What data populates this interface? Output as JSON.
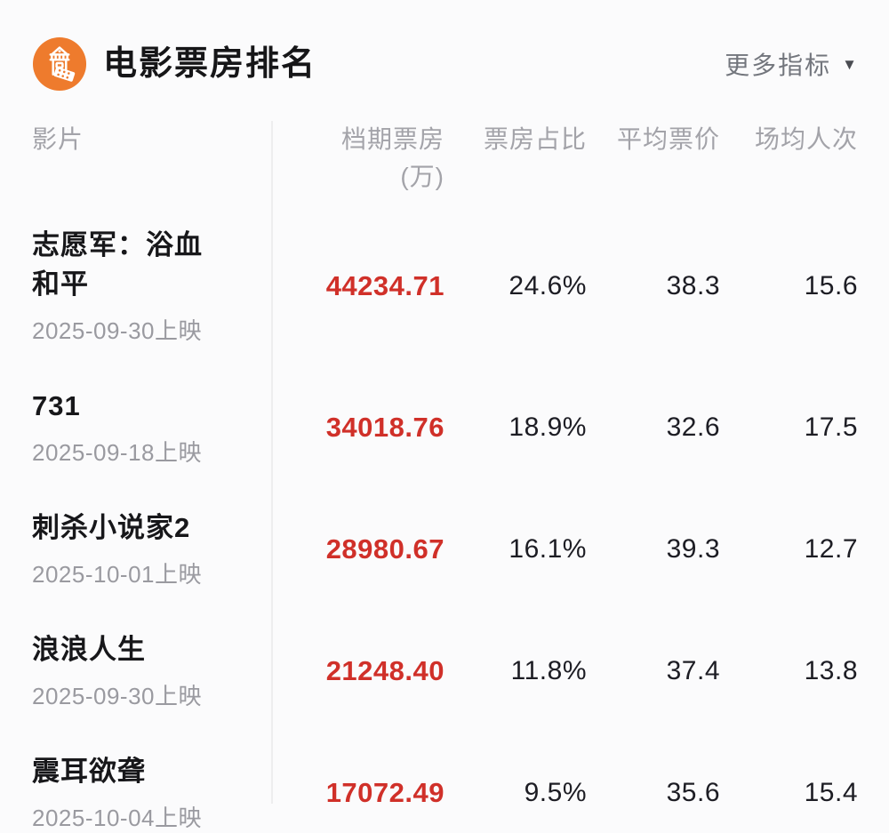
{
  "header": {
    "title": "电影票房排名",
    "more_label": "更多指标",
    "caret_icon": "▼",
    "logo_icon": "movie-theater-beacon-icon",
    "brand_color": "#EE7B2D"
  },
  "table": {
    "columns": {
      "film": "影片",
      "gross": "档期票房",
      "gross_unit": "(万)",
      "share": "票房占比",
      "avg_price": "平均票价",
      "avg_attendance": "场均人次"
    },
    "rows": [
      {
        "title": "志愿军：浴血和平",
        "release": "2025-09-30上映",
        "gross": "44234.71",
        "share": "24.6%",
        "avg_price": "38.3",
        "avg_attendance": "15.6"
      },
      {
        "title": "731",
        "release": "2025-09-18上映",
        "gross": "34018.76",
        "share": "18.9%",
        "avg_price": "32.6",
        "avg_attendance": "17.5"
      },
      {
        "title": "刺杀小说家2",
        "release": "2025-10-01上映",
        "gross": "28980.67",
        "share": "16.1%",
        "avg_price": "39.3",
        "avg_attendance": "12.7"
      },
      {
        "title": "浪浪人生",
        "release": "2025-09-30上映",
        "gross": "21248.40",
        "share": "11.8%",
        "avg_price": "37.4",
        "avg_attendance": "13.8"
      },
      {
        "title": "震耳欲聋",
        "release": "2025-10-04上映",
        "gross": "17072.49",
        "share": "9.5%",
        "avg_price": "35.6",
        "avg_attendance": "15.4"
      }
    ],
    "colors": {
      "gross_value": "#D03029",
      "value_text": "#1D1D24",
      "header_text": "#A3A3A9",
      "date_text": "#9A9AA0",
      "divider": "#EDEDEE"
    }
  }
}
